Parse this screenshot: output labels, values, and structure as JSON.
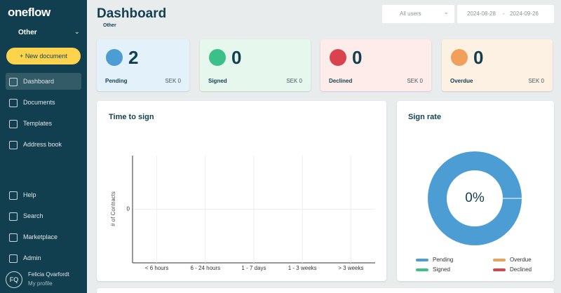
{
  "sidebar": {
    "logo": "oneflow",
    "workspace": "Other",
    "new_document": "+ New document",
    "nav": [
      "Dashboard",
      "Documents",
      "Templates",
      "Address book"
    ],
    "bottom_nav": [
      "Help",
      "Search",
      "Marketplace",
      "Admin"
    ],
    "user": {
      "initials": "FQ",
      "name": "Felicia Qvarfordt",
      "link": "My profile"
    }
  },
  "header": {
    "title": "Dashboard",
    "workspace": "Other",
    "user_filter": "All users",
    "date_from": "2024-08-28",
    "date_separator": "-",
    "date_to": "2024-09-26"
  },
  "cards": [
    {
      "label": "Pending",
      "count": 2,
      "amount": "SEK 0"
    },
    {
      "label": "Signed",
      "count": 0,
      "amount": "SEK 0"
    },
    {
      "label": "Declined",
      "count": 0,
      "amount": "SEK 0"
    },
    {
      "label": "Overdue",
      "count": 0,
      "amount": "SEK 0"
    }
  ],
  "chart_data": [
    {
      "type": "bar",
      "title": "Time to sign",
      "y_label": "# of Contracts",
      "categories": [
        "< 6 hours",
        "6 - 24 hours",
        "1 - 7 days",
        "1 - 3 weeks",
        "> 3 weeks"
      ],
      "values": [
        0,
        0,
        0,
        0,
        0
      ],
      "color": "#4d9dd5",
      "ylim": [
        -1,
        1
      ],
      "yticks": [
        0
      ],
      "grid": true
    },
    {
      "type": "pie",
      "title": "Sign rate",
      "center_label": "0%",
      "categories": [
        "Pending",
        "Overdue",
        "Signed",
        "Declined"
      ],
      "values": [
        2,
        0,
        0,
        0
      ],
      "colors": [
        "#4d9dd5",
        "#f0a05a",
        "#3cc08a",
        "#d9434e"
      ]
    }
  ]
}
